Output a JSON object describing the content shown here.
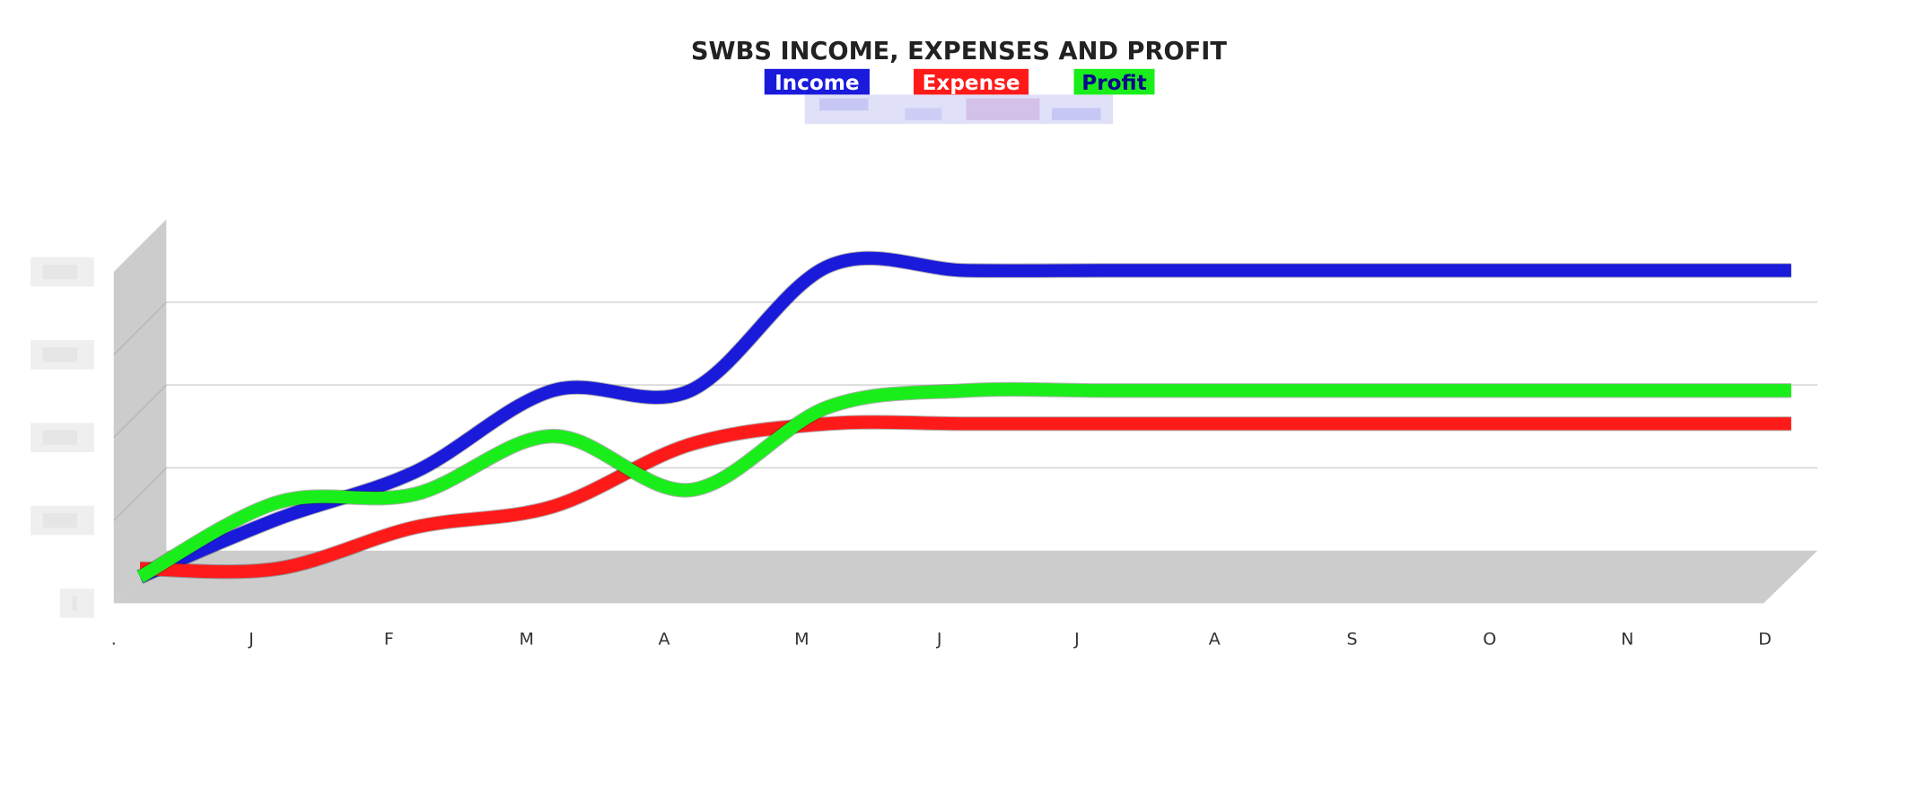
{
  "chart_data": {
    "type": "line",
    "title": "SWBS INCOME, EXPENSES AND PROFIT",
    "categories": [
      ".",
      "J",
      "F",
      "M",
      "A",
      "M",
      "J",
      "J",
      "A",
      "S",
      "O",
      "N",
      "D"
    ],
    "series": [
      {
        "name": "Income",
        "color": "#1a1adb",
        "label_color": "#ffffff",
        "values": [
          0,
          0.7,
          1.27,
          2.25,
          2.25,
          3.75,
          3.7,
          3.7,
          3.7,
          3.7,
          3.7,
          3.7,
          3.7
        ]
      },
      {
        "name": "Expense",
        "color": "#ff1a1a",
        "label_color": "#ffffff",
        "values": [
          0.1,
          0.1,
          0.6,
          0.85,
          1.6,
          1.85,
          1.85,
          1.85,
          1.85,
          1.85,
          1.85,
          1.85,
          1.85
        ]
      },
      {
        "name": "Profit",
        "color": "#1aee1a",
        "label_color": "#0a0a8a",
        "values": [
          0,
          0.9,
          1.0,
          1.7,
          1.05,
          2.05,
          2.25,
          2.25,
          2.25,
          2.25,
          2.25,
          2.25,
          2.25
        ]
      }
    ],
    "ylim": [
      0,
      4
    ],
    "yticks": [
      0,
      1,
      2,
      3,
      4
    ],
    "grid": true
  }
}
